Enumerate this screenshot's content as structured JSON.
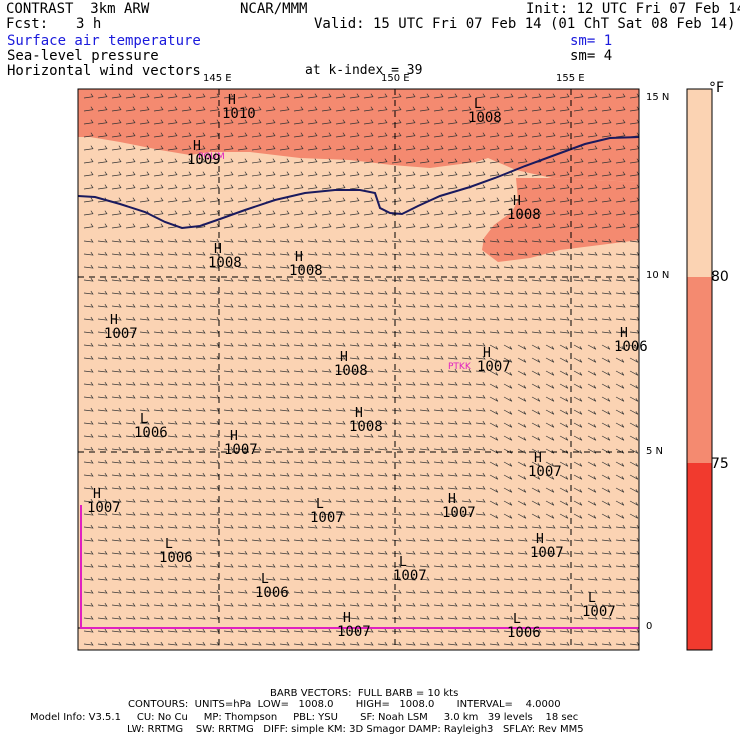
{
  "header": {
    "model": "CONTRAST  3km ARW",
    "fcst_label": "Fcst:",
    "fcst_value": "3 h",
    "source": "NCAR/MMM",
    "init": "Init: 12 UTC Fri 07 Feb 14",
    "valid": "Valid: 15 UTC Fri 07 Feb 14 (01 ChT Sat 08 Feb 14)",
    "field1": "Surface air temperature",
    "field2": "Sea-level pressure",
    "field3": "Horizontal wind vectors",
    "level": "at k-index = 39",
    "sm1": "sm= 1",
    "sm2": "sm= 4"
  },
  "map": {
    "lon_labels": [
      "145 E",
      "150 E",
      "155 E"
    ],
    "lat_labels": [
      "15 N",
      "10 N",
      "5 N",
      "0"
    ],
    "stations": [
      "PGUM",
      "PTKK"
    ],
    "pressure_centers": [
      {
        "sym": "H",
        "val": "1010"
      },
      {
        "sym": "L",
        "val": "1008"
      },
      {
        "sym": "H",
        "val": "1009"
      },
      {
        "sym": "H",
        "val": "1008"
      },
      {
        "sym": "H",
        "val": "1008"
      },
      {
        "sym": "H",
        "val": "1008"
      },
      {
        "sym": "H",
        "val": "1007"
      },
      {
        "sym": "H",
        "val": "1008"
      },
      {
        "sym": "H",
        "val": "1007"
      },
      {
        "sym": "H",
        "val": "1006"
      },
      {
        "sym": "H",
        "val": "1008"
      },
      {
        "sym": "L",
        "val": "1006"
      },
      {
        "sym": "H",
        "val": "1007"
      },
      {
        "sym": "H",
        "val": "1007"
      },
      {
        "sym": "H",
        "val": "1007"
      },
      {
        "sym": "L",
        "val": "1007"
      },
      {
        "sym": "H",
        "val": "1007"
      },
      {
        "sym": "L",
        "val": "1006"
      },
      {
        "sym": "H",
        "val": "1007"
      },
      {
        "sym": "L",
        "val": "1007"
      },
      {
        "sym": "L",
        "val": "1006"
      },
      {
        "sym": "L",
        "val": "1007"
      },
      {
        "sym": "H",
        "val": "1007"
      },
      {
        "sym": "L",
        "val": "1006"
      }
    ]
  },
  "colorbar": {
    "unit": "°F",
    "labels": [
      "80",
      "75"
    ],
    "colors": {
      "c85": "#fbd3b3",
      "c80": "#f48a70",
      "c75": "#f13a2e"
    }
  },
  "footer": {
    "barb": "BARB VECTORS:  FULL BARB = 10 kts",
    "contours": "CONTOURS:  UNITS=hPa  LOW=   1008.0       HIGH=   1008.0       INTERVAL=    4.0000",
    "info1": "Model Info: V3.5.1     CU: No Cu     MP: Thompson     PBL: YSU       SF: Noah LSM     3.0 km   39 levels    18 sec",
    "info2": "LW: RRTMG    SW: RRTMG   DIFF: simple KM: 3D Smagor DAMP: Rayleigh3   SFLAY: Rev MM5"
  }
}
